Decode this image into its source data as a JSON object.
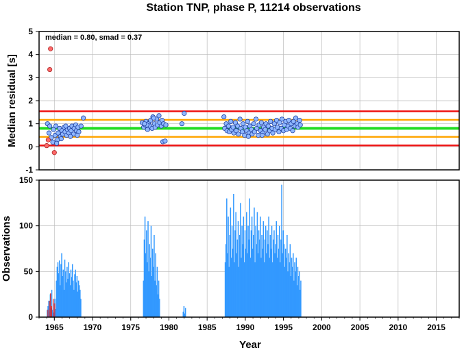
{
  "title": "Station TNP, phase P, 11214 observations",
  "annotation": "median = 0.80, smad = 0.37",
  "colors": {
    "median_line": "#22dd22",
    "smad_line": "#ffa500",
    "limit_line": "#ee1111",
    "point_fill": "#8fb7ff",
    "outlier_fill": "#ff6a6a",
    "bar": "#3399ff",
    "bar_low": "#dd2222",
    "grid": "#bbbbbb"
  },
  "chart_data": [
    {
      "type": "scatter",
      "ylabel": "Median residual [s]",
      "xlim": [
        1963,
        2018
      ],
      "ylim": [
        -1,
        5
      ],
      "yticks": [
        "-1",
        "0",
        "1",
        "2",
        "3",
        "4",
        "5"
      ],
      "grid": true,
      "reference_lines": [
        {
          "name": "median",
          "y": 0.8
        },
        {
          "name": "median-smad",
          "y": 0.43
        },
        {
          "name": "median+smad",
          "y": 1.17
        },
        {
          "name": "lower-limit",
          "y": 0.06
        },
        {
          "name": "upper-limit",
          "y": 1.54
        }
      ],
      "outliers": [
        {
          "x": 1964.5,
          "y": 4.25
        },
        {
          "x": 1964.4,
          "y": 3.35
        },
        {
          "x": 1965.0,
          "y": -0.25
        },
        {
          "x": 1964.0,
          "y": 0.05
        },
        {
          "x": 1964.2,
          "y": 0.3
        }
      ],
      "points": [
        [
          1964.1,
          1.0
        ],
        [
          1964.3,
          0.6
        ],
        [
          1964.4,
          0.9
        ],
        [
          1964.6,
          0.4
        ],
        [
          1964.8,
          0.2
        ],
        [
          1964.9,
          0.75
        ],
        [
          1965.1,
          0.5
        ],
        [
          1965.2,
          0.9
        ],
        [
          1965.4,
          0.3
        ],
        [
          1965.5,
          0.6
        ],
        [
          1965.7,
          0.8
        ],
        [
          1965.8,
          0.45
        ],
        [
          1966.0,
          0.7
        ],
        [
          1966.1,
          0.55
        ],
        [
          1966.3,
          0.85
        ],
        [
          1966.4,
          0.65
        ],
        [
          1966.6,
          0.5
        ],
        [
          1966.7,
          0.75
        ],
        [
          1966.9,
          0.6
        ],
        [
          1967.0,
          0.8
        ],
        [
          1967.2,
          0.7
        ],
        [
          1967.3,
          0.9
        ],
        [
          1967.5,
          0.55
        ],
        [
          1967.6,
          0.8
        ],
        [
          1967.8,
          0.95
        ],
        [
          1967.9,
          0.7
        ],
        [
          1968.1,
          0.85
        ],
        [
          1968.2,
          0.65
        ],
        [
          1968.5,
          0.9
        ],
        [
          1968.8,
          1.25
        ],
        [
          1965.3,
          0.15
        ],
        [
          1965.9,
          0.35
        ],
        [
          1966.5,
          0.9
        ],
        [
          1967.1,
          0.45
        ],
        [
          1968.0,
          0.5
        ],
        [
          1976.5,
          1.05
        ],
        [
          1976.7,
          0.85
        ],
        [
          1976.9,
          0.95
        ],
        [
          1977.0,
          1.1
        ],
        [
          1977.2,
          0.75
        ],
        [
          1977.3,
          1.0
        ],
        [
          1977.5,
          0.9
        ],
        [
          1977.6,
          1.15
        ],
        [
          1977.8,
          0.8
        ],
        [
          1977.9,
          1.3
        ],
        [
          1978.1,
          1.0
        ],
        [
          1978.2,
          0.85
        ],
        [
          1978.4,
          1.2
        ],
        [
          1978.5,
          0.95
        ],
        [
          1978.7,
          1.35
        ],
        [
          1978.8,
          1.05
        ],
        [
          1979.0,
          0.9
        ],
        [
          1979.1,
          1.15
        ],
        [
          1979.3,
          1.0
        ],
        [
          1979.2,
          0.22
        ],
        [
          1979.5,
          0.25
        ],
        [
          1979.6,
          0.95
        ],
        [
          1978.0,
          1.25
        ],
        [
          1977.1,
          0.95
        ],
        [
          1976.8,
          1.0
        ],
        [
          1981.7,
          1.0
        ],
        [
          1982.0,
          1.45
        ],
        [
          1987.2,
          1.3
        ],
        [
          1987.3,
          0.8
        ],
        [
          1987.5,
          1.0
        ],
        [
          1987.6,
          0.7
        ],
        [
          1987.8,
          0.9
        ],
        [
          1987.9,
          0.65
        ],
        [
          1988.1,
          1.1
        ],
        [
          1988.2,
          0.75
        ],
        [
          1988.4,
          0.85
        ],
        [
          1988.5,
          0.6
        ],
        [
          1988.7,
          1.05
        ],
        [
          1988.8,
          0.7
        ],
        [
          1989.0,
          0.9
        ],
        [
          1989.1,
          0.55
        ],
        [
          1989.3,
          1.2
        ],
        [
          1989.4,
          0.8
        ],
        [
          1989.6,
          0.65
        ],
        [
          1989.7,
          1.0
        ],
        [
          1989.9,
          0.5
        ],
        [
          1990.0,
          0.85
        ],
        [
          1990.2,
          0.7
        ],
        [
          1990.3,
          1.1
        ],
        [
          1990.5,
          0.6
        ],
        [
          1990.6,
          0.9
        ],
        [
          1990.8,
          0.75
        ],
        [
          1990.9,
          0.55
        ],
        [
          1991.1,
          1.0
        ],
        [
          1991.2,
          0.65
        ],
        [
          1991.4,
          1.2
        ],
        [
          1991.5,
          0.8
        ],
        [
          1991.7,
          0.5
        ],
        [
          1991.8,
          0.95
        ],
        [
          1992.0,
          0.7
        ],
        [
          1992.1,
          1.05
        ],
        [
          1992.3,
          0.6
        ],
        [
          1992.4,
          0.85
        ],
        [
          1992.6,
          0.75
        ],
        [
          1992.7,
          1.0
        ],
        [
          1992.9,
          0.55
        ],
        [
          1993.0,
          0.9
        ],
        [
          1993.2,
          0.7
        ],
        [
          1993.3,
          1.1
        ],
        [
          1993.5,
          0.8
        ],
        [
          1993.6,
          0.6
        ],
        [
          1993.8,
          1.0
        ],
        [
          1993.9,
          0.75
        ],
        [
          1994.1,
          1.15
        ],
        [
          1994.2,
          0.85
        ],
        [
          1994.4,
          0.65
        ],
        [
          1994.5,
          1.05
        ],
        [
          1994.7,
          0.8
        ],
        [
          1994.8,
          1.2
        ],
        [
          1995.0,
          0.7
        ],
        [
          1995.1,
          0.95
        ],
        [
          1995.3,
          1.1
        ],
        [
          1995.4,
          0.75
        ],
        [
          1995.6,
          0.9
        ],
        [
          1995.7,
          1.15
        ],
        [
          1995.9,
          0.8
        ],
        [
          1996.0,
          1.0
        ],
        [
          1996.2,
          0.7
        ],
        [
          1996.3,
          1.1
        ],
        [
          1996.5,
          0.9
        ],
        [
          1996.6,
          1.25
        ],
        [
          1996.8,
          1.0
        ],
        [
          1996.9,
          0.85
        ],
        [
          1997.1,
          1.15
        ],
        [
          1997.2,
          0.95
        ],
        [
          1990.4,
          0.45
        ],
        [
          1992.2,
          0.5
        ]
      ]
    },
    {
      "type": "bar",
      "ylabel": "Observations",
      "xlabel": "Year",
      "xlim": [
        1963,
        2018
      ],
      "ylim": [
        0,
        150
      ],
      "yticks": [
        "0",
        "50",
        "100",
        "150"
      ],
      "xticks": [
        "1965",
        "1970",
        "1975",
        "1980",
        "1985",
        "1990",
        "1995",
        "2000",
        "2005",
        "2010",
        "2015"
      ],
      "grid": true,
      "segments": [
        {
          "start": 1964.0,
          "end": 1965.2,
          "profile": [
            8,
            12,
            18,
            6,
            25,
            10,
            30,
            8,
            15,
            5,
            20,
            9
          ]
        },
        {
          "start": 1965.2,
          "end": 1968.5,
          "profile": [
            40,
            55,
            60,
            48,
            62,
            35,
            58,
            70,
            45,
            52,
            30,
            63,
            50,
            38,
            55,
            42,
            60,
            48,
            35,
            52,
            44,
            58,
            40,
            30,
            47,
            52,
            38,
            45,
            28,
            40,
            35,
            30,
            20
          ]
        },
        {
          "start": 1976.6,
          "end": 1978.8,
          "profile": [
            40,
            85,
            110,
            70,
            95,
            60,
            105,
            50,
            80,
            65,
            100,
            45,
            75,
            55,
            90,
            40,
            70,
            35,
            55,
            25,
            40,
            20
          ]
        },
        {
          "start": 1981.8,
          "end": 1982.2,
          "profile": [
            6,
            12,
            4,
            10
          ]
        },
        {
          "start": 1987.3,
          "end": 1997.3,
          "profile": [
            60,
            80,
            130,
            70,
            110,
            55,
            90,
            120,
            65,
            100,
            75,
            135,
            60,
            95,
            115,
            70,
            85,
            105,
            55,
            90,
            125,
            65,
            100,
            80,
            110,
            60,
            95,
            75,
            115,
            70,
            100,
            85,
            130,
            65,
            95,
            110,
            75,
            90,
            120,
            60,
            100,
            80,
            115,
            70,
            95,
            85,
            110,
            65,
            90,
            75,
            105,
            60,
            85,
            100,
            70,
            95,
            80,
            110,
            65,
            90,
            75,
            100,
            60,
            85,
            95,
            70,
            80,
            105,
            65,
            90,
            75,
            100,
            60,
            85,
            145,
            70,
            95,
            80,
            55,
            75,
            65,
            90,
            50,
            70,
            60,
            80,
            45,
            65,
            55,
            70,
            40,
            60,
            50,
            65,
            35,
            55,
            45,
            50,
            30,
            40
          ]
        }
      ],
      "low_bars": [
        [
          1964.1,
          8
        ],
        [
          1964.3,
          18
        ],
        [
          1964.45,
          26
        ],
        [
          1964.6,
          12
        ],
        [
          1964.8,
          20
        ],
        [
          1965.0,
          15
        ]
      ]
    }
  ]
}
